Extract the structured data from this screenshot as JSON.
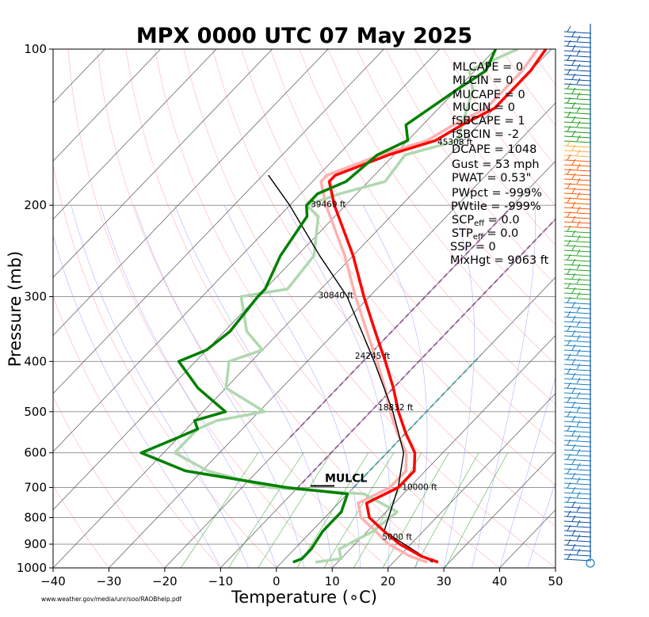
{
  "chart_data": {
    "type": "skew-t",
    "title": "MPX 0000 UTC 07 May 2025",
    "xlabel": "Temperature ($^\\circ$C)",
    "ylabel": "Pressure (mb)",
    "xlim": [
      -40,
      50
    ],
    "ylim": [
      1000,
      100
    ],
    "y_scale": "log",
    "x_ticks": [
      "−40",
      "−30",
      "−20",
      "−10",
      "0",
      "10",
      "20",
      "30",
      "40",
      "50"
    ],
    "x_tick_values": [
      -40,
      -30,
      -20,
      -10,
      0,
      10,
      20,
      30,
      40,
      50
    ],
    "y_ticks": [
      "100",
      "200",
      "300",
      "400",
      "500",
      "600",
      "700",
      "800",
      "900",
      "1000"
    ],
    "y_tick_values": [
      100,
      200,
      300,
      400,
      500,
      600,
      700,
      800,
      900,
      1000
    ],
    "grid": true,
    "temperature": {
      "pressure": [
        975,
        950,
        900,
        850,
        800,
        750,
        700,
        650,
        600,
        550,
        500,
        450,
        400,
        350,
        300,
        250,
        200,
        180,
        175,
        160,
        150,
        140,
        130,
        120,
        110,
        100
      ],
      "temp": [
        28,
        24,
        18,
        13,
        8,
        5,
        8,
        8,
        5,
        0,
        -5,
        -10,
        -16,
        -23,
        -31,
        -40,
        -52,
        -57,
        -57,
        -51,
        -45,
        -43,
        -40,
        -40,
        -40,
        -41
      ]
    },
    "dewpoint": {
      "pressure": [
        975,
        960,
        920,
        850,
        780,
        720,
        700,
        650,
        600,
        560,
        540,
        520,
        500,
        450,
        400,
        380,
        350,
        300,
        290,
        250,
        210,
        200,
        190,
        180,
        160,
        150,
        140,
        120,
        110,
        100
      ],
      "dewp": [
        2,
        3,
        3,
        2,
        2,
        0,
        -12,
        -33,
        -44,
        -40,
        -38,
        -40,
        -36,
        -45,
        -53,
        -50,
        -49,
        -50,
        -50,
        -53,
        -55,
        -57,
        -57,
        -54,
        -53,
        -50,
        -53,
        -50,
        -48,
        -50
      ]
    },
    "parcel": {
      "pressure": [
        975,
        850,
        700,
        600,
        500,
        400,
        300,
        250,
        200,
        175
      ],
      "temp": [
        27,
        13,
        8,
        3,
        -6,
        -18,
        -34,
        -46,
        -60,
        -69
      ]
    },
    "height_labels": [
      {
        "p": 870,
        "text": "5000 ft"
      },
      {
        "p": 698,
        "text": "10000 ft"
      },
      {
        "p": 490,
        "text": "18832 ft"
      },
      {
        "p": 390,
        "text": "24245 ft"
      },
      {
        "p": 298,
        "text": "30840 ft"
      },
      {
        "p": 199,
        "text": "39469 ft"
      },
      {
        "p": 151,
        "text": "45308 ft"
      }
    ],
    "lcl_label": "MULCL",
    "indices": [
      {
        "label": "MLCAPE = 0",
        "color": "#000000"
      },
      {
        "label": "MLCIN = 0",
        "color": "#000000"
      },
      {
        "label": "MUCAPE = 0",
        "color": "#000000"
      },
      {
        "label": "MUCIN = 0",
        "color": "#000000"
      },
      {
        "label": "fSBCAPE = 1",
        "color": "#000000"
      },
      {
        "label": "fSBCIN = -2",
        "color": "#000000"
      },
      {
        "label": "DCAPE = 1048",
        "color": "#000000"
      },
      {
        "label": "Gust = 53 mph",
        "color": "#000000"
      },
      {
        "label": "PWAT = 0.53\"",
        "color": "#000000"
      },
      {
        "label": "PWpct = -999%",
        "color": "#a52a2a"
      },
      {
        "label": "PWtile = -999%",
        "color": "#a52a2a"
      },
      {
        "label": "SCPeff = 0.0",
        "color": "#000000"
      },
      {
        "label": "STPeff = 0.0",
        "color": "#000000"
      },
      {
        "label": "SSP = 0",
        "color": "#000000"
      },
      {
        "label": "MixHgt = 9063 ft",
        "color": "#000000"
      }
    ],
    "source_note": "www.weather.gov/media/unr/soo/RAOBhelp.pdf",
    "colors": {
      "temperature": "#ff0000",
      "dewpoint": "#008000",
      "temperature_prev": "#ffb0b0",
      "dewpoint_prev": "#b0d8b0",
      "parcel": "#000000"
    }
  }
}
